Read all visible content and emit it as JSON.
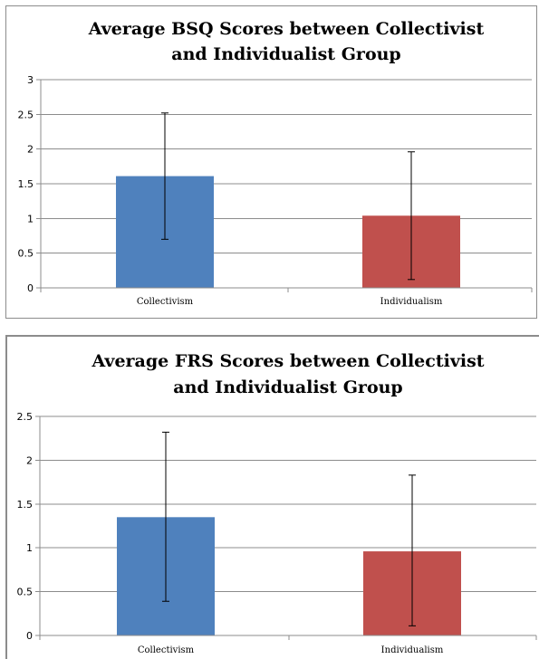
{
  "chart_data": [
    {
      "type": "bar",
      "title_lines": [
        "Average BSQ Scores between Collectivist",
        "and Individualist Group"
      ],
      "categories": [
        "Collectivism",
        "Individualism"
      ],
      "values": [
        1.61,
        1.04
      ],
      "error_bars": [
        {
          "low": 0.7,
          "high": 2.52
        },
        {
          "low": 0.12,
          "high": 1.96
        }
      ],
      "colors": [
        "#4f81bd",
        "#c0504d"
      ],
      "ylim": [
        0,
        3
      ],
      "yticks": [
        "0",
        "0.5",
        "1",
        "1.5",
        "2",
        "2.5",
        "3"
      ],
      "ytick_values": [
        0,
        0.5,
        1,
        1.5,
        2,
        2.5,
        3
      ],
      "grid": true,
      "legend": "none",
      "xlabel": "",
      "ylabel": ""
    },
    {
      "type": "bar",
      "title_lines": [
        "Average FRS Scores between Collectivist",
        "and Individualist Group"
      ],
      "categories": [
        "Collectivism",
        "Individualism"
      ],
      "values": [
        1.35,
        0.96
      ],
      "error_bars": [
        {
          "low": 0.39,
          "high": 2.32
        },
        {
          "low": 0.11,
          "high": 1.83
        }
      ],
      "colors": [
        "#4f81bd",
        "#c0504d"
      ],
      "ylim": [
        0,
        2.5
      ],
      "yticks": [
        "0",
        "0.5",
        "1",
        "1.5",
        "2",
        "2.5"
      ],
      "ytick_values": [
        0,
        0.5,
        1,
        1.5,
        2,
        2.5
      ],
      "grid": true,
      "legend": "none",
      "xlabel": "",
      "ylabel": ""
    }
  ]
}
